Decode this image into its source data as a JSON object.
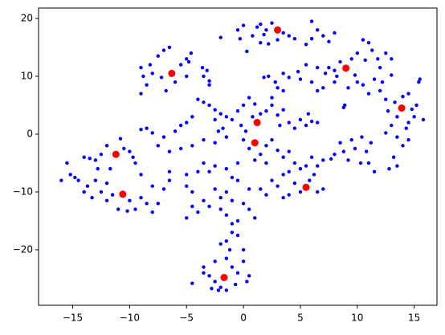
{
  "chart_data": {
    "type": "scatter",
    "xlim": [
      -18,
      17
    ],
    "ylim": [
      -29.6,
      21.8
    ],
    "xticks": [
      {
        "value": -15,
        "label": "−15"
      },
      {
        "value": -10,
        "label": "−10"
      },
      {
        "value": -5,
        "label": "−5"
      },
      0,
      5,
      10,
      15
    ],
    "yticks": [
      {
        "value": -20,
        "label": "−20"
      },
      {
        "value": -10,
        "label": "−10"
      },
      0,
      10,
      20
    ],
    "series": [
      {
        "color": "#0000ff",
        "x": [
          -2,
          -0.5,
          0,
          -0.3,
          0.8,
          1.2,
          1.5,
          1.8,
          2,
          2.5,
          3.5,
          2.2,
          1.5,
          4,
          4.5,
          6,
          6.5,
          7,
          6,
          7.5,
          8,
          5.5,
          3,
          0.3,
          8.5,
          9.5,
          10,
          10.5,
          11,
          11.3,
          11.8,
          10.7,
          12,
          12.5,
          13,
          8,
          7.5,
          9.8,
          10,
          9.2,
          8.9,
          8.8,
          10.5,
          11,
          11.5,
          12,
          12.2,
          13,
          8.2,
          7.2,
          6.5,
          5.5,
          4.8,
          5,
          4,
          3.5,
          3,
          2.8,
          2.2,
          1.8,
          2.5,
          3.5,
          6,
          6.5,
          7,
          8,
          12.5,
          13.3,
          14,
          14.5,
          15.5,
          15.4,
          15.2,
          14.8,
          15,
          14.5,
          13.5,
          12.7,
          13,
          14.3,
          15.8,
          12.5,
          13.5,
          14,
          14.5,
          13.2,
          13.5,
          12.8,
          11.5,
          10.8,
          11.2,
          10.4,
          9.5,
          9.8,
          8.5,
          8.8,
          9.2,
          8,
          7.7,
          11,
          10.3,
          -9,
          -8.8,
          -8.2,
          -8,
          -7.5,
          -7,
          -6.5,
          -7.2,
          -5.5,
          -5,
          -4.6,
          -4.8,
          -3.6,
          -3.2,
          -3.5,
          -5,
          -6,
          -8.5,
          -9,
          -6.8,
          -3,
          -3,
          -4,
          -3.5,
          -3,
          -2.5,
          -2,
          -1.5,
          -1,
          -0.5,
          0,
          0.5,
          1,
          1.5,
          2,
          2.5,
          3,
          3.5,
          -0.2,
          0.2,
          0.8,
          -1.8,
          -2.2,
          -2.5,
          -1.5,
          -4.5,
          -5,
          -5.5,
          -6,
          -7,
          -8,
          -8.5,
          -9,
          -7.5,
          -6.5,
          -5.5,
          -4.5,
          -3.5,
          -2.5,
          4,
          4.5,
          5,
          5.5,
          6,
          6.5,
          5.7,
          3.2,
          0,
          0.5,
          1.5,
          2,
          2.5,
          3,
          3.5,
          2,
          1,
          4,
          4.5,
          5,
          5.5,
          6,
          6.5,
          7,
          6.2,
          5.8,
          4,
          3.5,
          2.5,
          3,
          4.5,
          5,
          6.5,
          7,
          4,
          3.5,
          2,
          1.5,
          0.5,
          -0.5,
          -1,
          -1.5,
          -0.5,
          -2.5,
          -3,
          -3.5,
          -4,
          -5,
          -6.5,
          -6.5,
          -5,
          -4.5,
          -3.5,
          -2.5,
          -2,
          -1.5,
          -3,
          -4.5,
          -4,
          -5,
          -2,
          -1.5,
          0,
          0.5,
          1,
          -1,
          -16,
          -15.5,
          -15.2,
          -14.8,
          -14.5,
          -14,
          -13.5,
          -13,
          -12.5,
          -12,
          -11.7,
          -10.8,
          -10.5,
          -10,
          -9.5,
          -9,
          -9.7,
          -12.8,
          -13,
          -13.7,
          -14,
          -13.3,
          -12.5,
          -12,
          -11.5,
          -11,
          -10.2,
          -10,
          -9,
          -8.5,
          -8,
          -7.5,
          -8,
          -7,
          -12,
          -9.5,
          -1,
          -0.5,
          -1,
          -1.5,
          -2,
          -1.2,
          -1.5,
          -2.5,
          -3.5,
          -3,
          -2.5,
          -2,
          -1.5,
          -2.2,
          -0.7,
          -0.5,
          -1,
          0,
          0.5,
          0.3,
          -3.5,
          -4.5,
          -2.8,
          0,
          -0.5
        ],
        "values": [
          16.7,
          18,
          18.8,
          16.5,
          17,
          18.5,
          19,
          17.2,
          18,
          19.2,
          17.5,
          15.6,
          15.8,
          17,
          16.5,
          19.5,
          18,
          17,
          16.5,
          16,
          17.5,
          15.5,
          16.3,
          14.3,
          12.5,
          13,
          14,
          16.3,
          15.8,
          14.5,
          13,
          12.8,
          11.5,
          14,
          13,
          11,
          11.5,
          10.2,
          9,
          8,
          5,
          4.6,
          8.5,
          7,
          9.5,
          7.5,
          9,
          10.2,
          10,
          10.5,
          11.5,
          12,
          10.8,
          9.5,
          9.8,
          10.5,
          8,
          9,
          10,
          9.8,
          6.3,
          7.5,
          9,
          7.5,
          8,
          9,
          6,
          5.5,
          6.5,
          7,
          9.5,
          9,
          5,
          4.3,
          3,
          2,
          3,
          4,
          1.5,
          1,
          2.5,
          0.2,
          -0.5,
          -2,
          -1,
          -4,
          -5.5,
          -6,
          -6.5,
          -3,
          -1.5,
          -0.5,
          -1,
          -2.5,
          -1.5,
          -3,
          -4.5,
          -3.5,
          -4.3,
          -5,
          -5,
          11.5,
          10,
          12,
          10.5,
          13.5,
          14.5,
          15,
          9.8,
          12,
          13,
          14,
          12.5,
          11.5,
          11,
          10,
          10,
          9,
          8.5,
          7,
          7.5,
          9.2,
          8.5,
          6,
          5.5,
          5,
          4.2,
          3.5,
          3,
          2.5,
          4,
          5,
          6.3,
          5.2,
          3.5,
          4,
          5,
          3.3,
          4.2,
          1.5,
          0.5,
          3,
          1,
          0.5,
          -1.5,
          -0.5,
          3,
          2,
          1.5,
          0.5,
          -0.5,
          0.2,
          1,
          0.8,
          -2,
          -3,
          -2.5,
          -2,
          -1,
          2.5,
          2,
          1,
          2.5,
          1.5,
          2.2,
          2,
          3.5,
          1.5,
          -1,
          -2.5,
          -3.5,
          -2,
          -1,
          -2.8,
          -4,
          -5,
          -4.5,
          -3,
          -5,
          -6,
          -5.5,
          -4,
          -5.5,
          -4.5,
          -7,
          -8,
          -6.5,
          -7,
          -8,
          -9,
          -8.5,
          -10,
          -10,
          -9.5,
          -10.5,
          -11,
          -10.5,
          -9.5,
          -9.5,
          -8,
          -7.5,
          -6,
          -5,
          -5.5,
          -6.5,
          -5,
          -6.5,
          -7,
          -6.5,
          -8,
          -9,
          -10,
          -11.5,
          -9.5,
          -11,
          -10,
          -12.5,
          -12.5,
          -13.5,
          -14.5,
          -13,
          -14,
          -12,
          -13,
          -14.5,
          -11.5,
          -8,
          -5,
          -7,
          -7.5,
          -8,
          -4,
          -4.2,
          -4.5,
          -3.5,
          -2,
          -6,
          -0.8,
          -2.5,
          -3,
          -5,
          -7,
          -4,
          -6,
          -8,
          -9,
          -10,
          -11,
          -10,
          -8.5,
          -10.5,
          -13,
          -13.3,
          -11.5,
          -11,
          -12,
          -13.5,
          -12,
          -9,
          -9.5,
          -11.5,
          -13,
          -15.5,
          -15,
          -17,
          -18.5,
          -19,
          -20,
          -21.5,
          -22,
          -23,
          -24.5,
          -25.5,
          -26.5,
          -27,
          -27,
          -26,
          -24,
          -23,
          -22,
          -24.5,
          -25.5,
          -24,
          -25.8,
          -26.7,
          -20,
          -17.5
        ]
      },
      {
        "color": "#ff0000",
        "x": [
          -6.3,
          3,
          9,
          13.9,
          1.2,
          1,
          -11.2,
          -10.6,
          5.5,
          -1.7
        ],
        "values": [
          10.5,
          18,
          11.4,
          4.5,
          2,
          -1.5,
          -3.5,
          -10.4,
          -9.2,
          -24.8
        ]
      }
    ]
  }
}
